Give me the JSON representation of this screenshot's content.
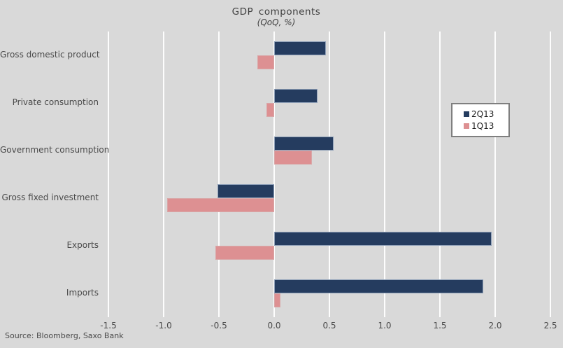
{
  "chart_data": {
    "type": "bar",
    "orientation": "horizontal",
    "title": "GDP components",
    "subtitle": "(QoQ, %)",
    "categories": [
      "Gross domestic product",
      "Private consumption",
      "Government consumption",
      "Gross fixed investment",
      "Exports",
      "Imports"
    ],
    "series": [
      {
        "name": "2Q13",
        "color": "#253C5F",
        "values": [
          0.47,
          0.39,
          0.54,
          -0.51,
          1.97,
          1.89
        ]
      },
      {
        "name": "1Q13",
        "color": "#DD9092",
        "values": [
          -0.15,
          -0.07,
          0.34,
          -0.97,
          -0.53,
          0.06
        ]
      }
    ],
    "xlim": [
      -1.5,
      2.5
    ],
    "xticks": [
      "-1.5",
      "-1.0",
      "-0.5",
      "0.0",
      "0.5",
      "1.0",
      "1.5",
      "2.0",
      "2.5"
    ],
    "grid": "vertical-white",
    "legend_position": "right",
    "background_color": "#D9D9D9",
    "source": "Source: Bloomberg, Saxo Bank"
  }
}
